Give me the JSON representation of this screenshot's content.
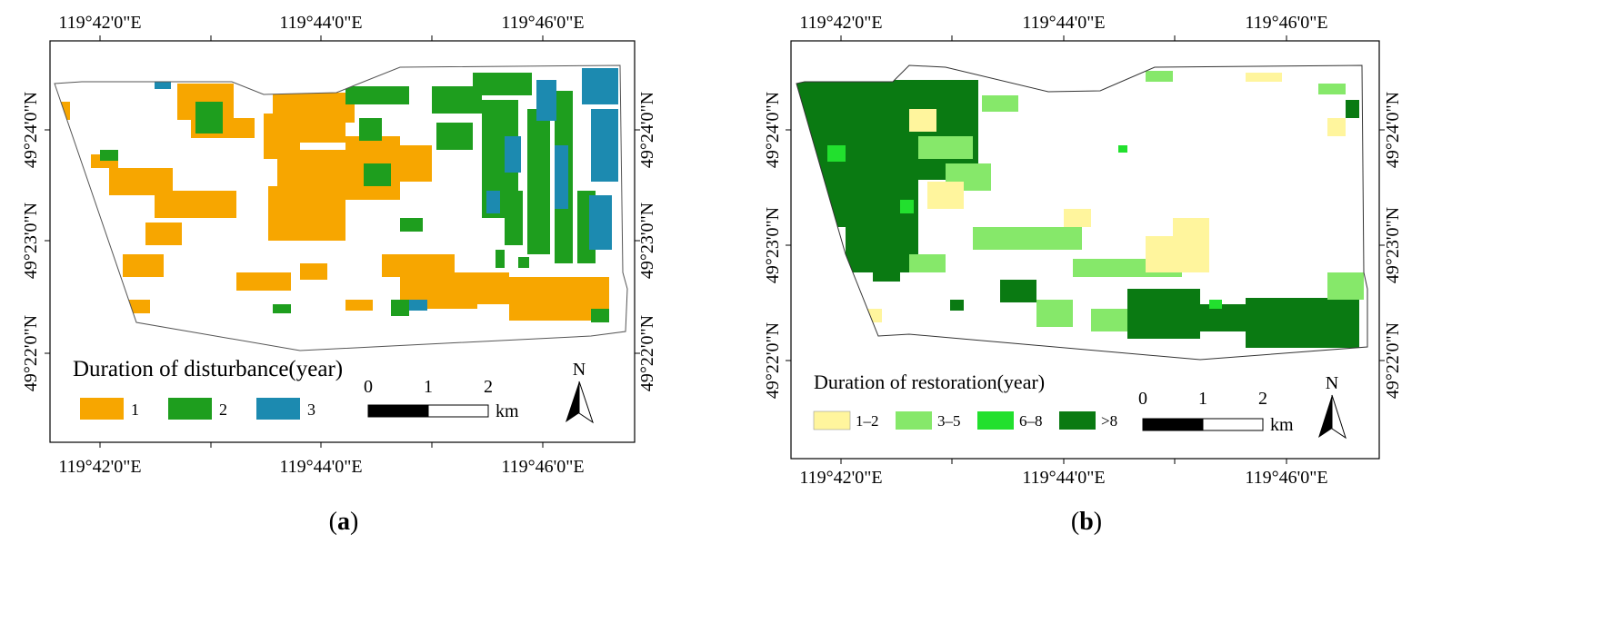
{
  "panels": [
    {
      "id": "a",
      "label": "(a)",
      "label_letter": "a",
      "top_axis": [
        "119°42'0\"E",
        "119°44'0\"E",
        "119°46'0\"E"
      ],
      "bottom_axis": [
        "119°42'0\"E",
        "119°44'0\"E",
        "119°46'0\"E"
      ],
      "left_axis": [
        "49°24'0\"N",
        "49°23'0\"N",
        "49°22'0\"N"
      ],
      "right_axis": [
        "49°24'0\"N",
        "49°23'0\"N",
        "49°22'0\"N"
      ],
      "legend_title": "Duration of disturbance(year)",
      "legend_items": [
        {
          "label": "1",
          "color": "#F7A600"
        },
        {
          "label": "2",
          "color": "#1E9E1E"
        },
        {
          "label": "3",
          "color": "#1C8AB0"
        }
      ],
      "scale_bar": {
        "ticks": [
          "0",
          "1",
          "2"
        ],
        "unit": "km"
      },
      "north_label": "N"
    },
    {
      "id": "b",
      "label": "(b)",
      "label_letter": "b",
      "top_axis": [
        "119°42'0\"E",
        "119°44'0\"E",
        "119°46'0\"E"
      ],
      "bottom_axis": [
        "119°42'0\"E",
        "119°44'0\"E",
        "119°46'0\"E"
      ],
      "left_axis": [
        "49°24'0\"N",
        "49°23'0\"N",
        "49°22'0\"N"
      ],
      "right_axis": [
        "49°24'0\"N",
        "49°23'0\"N",
        "49°22'0\"N"
      ],
      "legend_title": "Duration of restoration(year)",
      "legend_items": [
        {
          "label": "1–2",
          "color": "#FFF59D"
        },
        {
          "label": "3–5",
          "color": "#86E86A"
        },
        {
          "label": "6–8",
          "color": "#22E02E"
        },
        {
          "label": ">8",
          "color": "#0A7A12"
        }
      ],
      "scale_bar": {
        "ticks": [
          "0",
          "1",
          "2"
        ],
        "unit": "km"
      },
      "north_label": "N"
    }
  ]
}
